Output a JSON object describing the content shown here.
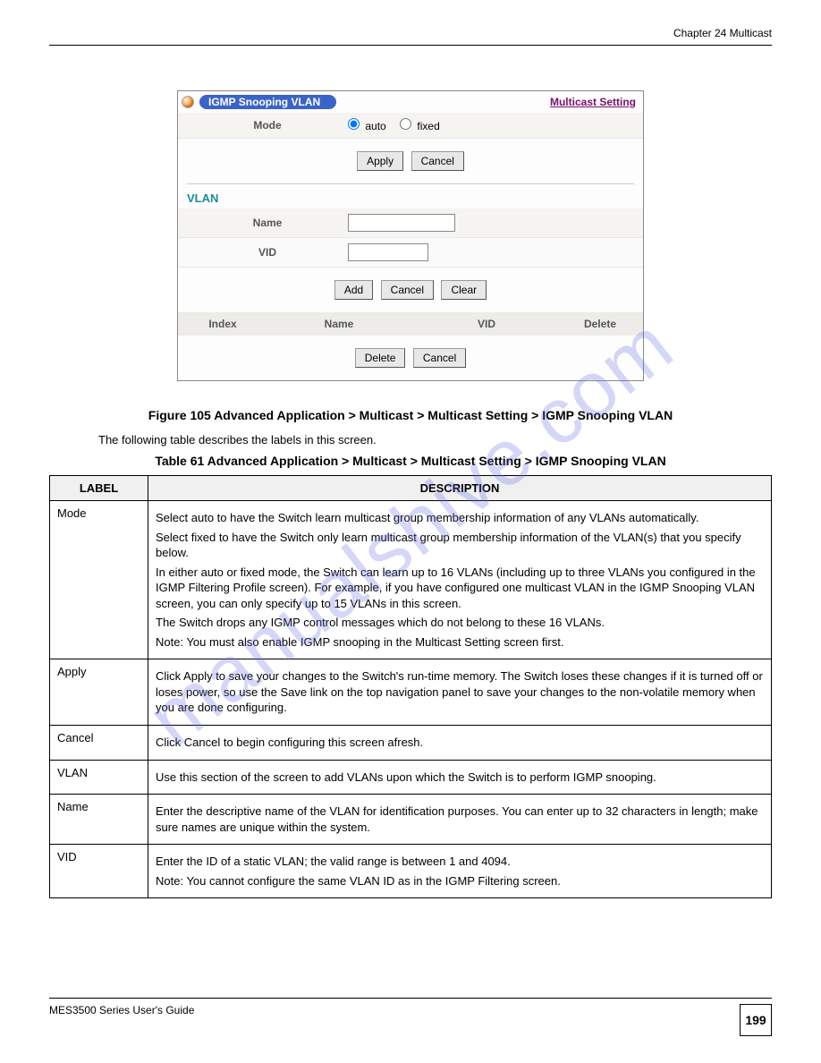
{
  "header": {
    "chapter": "Chapter 24 Multicast",
    "top_divider_color": "#000000"
  },
  "figure": {
    "title": "IGMP Snooping VLAN",
    "link": "Multicast Setting",
    "link_color": "#7a0f6d",
    "header_bg": "#3a63c8",
    "mode": {
      "label": "Mode",
      "options": [
        "auto",
        "fixed"
      ],
      "selected": "auto"
    },
    "buttons_top": {
      "apply": "Apply",
      "cancel": "Cancel"
    },
    "vlan_section": {
      "title": "VLAN",
      "title_color": "#1a8a9a",
      "name_label": "Name",
      "vid_label": "VID",
      "name_value": "",
      "vid_value": ""
    },
    "buttons_mid": {
      "add": "Add",
      "cancel": "Cancel",
      "clear": "Clear"
    },
    "grid_headers": {
      "index": "Index",
      "name": "Name",
      "vid": "VID",
      "delete": "Delete"
    },
    "buttons_bottom": {
      "delete": "Delete",
      "cancel": "Cancel"
    },
    "caption": "Figure 105   Advanced Application > Multicast > Multicast Setting > IGMP Snooping VLAN"
  },
  "table": {
    "intro": "The following table describes the labels in this screen.",
    "caption": "Table 61   Advanced Application > Multicast > Multicast Setting > IGMP Snooping VLAN",
    "headers": {
      "label": "LABEL",
      "description": "DESCRIPTION"
    },
    "header_bg": "#f0f0f0",
    "rows": [
      {
        "label": "Mode",
        "description": [
          "Select auto to have the Switch learn multicast group membership information of any VLANs automatically.",
          "Select fixed to have the Switch only learn multicast group membership information of the VLAN(s) that you specify below.",
          "In either auto or fixed mode, the Switch can learn up to 16 VLANs (including up to three VLANs you configured in the IGMP Filtering Profile screen). For example, if you have configured one multicast VLAN in the IGMP Snooping VLAN screen, you can only specify up to 15 VLANs in this screen.",
          "The Switch drops any IGMP control messages which do not belong to these 16 VLANs.",
          "Note: You must also enable IGMP snooping in the Multicast Setting screen first."
        ]
      },
      {
        "label": "Apply",
        "description": [
          "Click Apply to save your changes to the Switch's run-time memory. The Switch loses these changes if it is turned off or loses power, so use the Save link on the top navigation panel to save your changes to the non-volatile memory when you are done configuring."
        ]
      },
      {
        "label": "Cancel",
        "description": [
          "Click Cancel to begin configuring this screen afresh."
        ]
      },
      {
        "label": "VLAN",
        "description": [
          "Use this section of the screen to add VLANs upon which the Switch is to perform IGMP snooping."
        ]
      },
      {
        "label": "Name",
        "description": [
          "Enter the descriptive name of the VLAN for identification purposes. You can enter up to 32 characters in length; make sure names are unique within the system."
        ]
      },
      {
        "label": "VID",
        "description": [
          "Enter the ID of a static VLAN; the valid range is between 1 and 4094.",
          "Note: You cannot configure the same VLAN ID as in the IGMP Filtering screen."
        ]
      }
    ]
  },
  "footer": {
    "guide": "MES3500 Series User's Guide",
    "page": "199"
  },
  "watermark": {
    "text": "manualshive.com",
    "color": "rgba(100,110,230,0.28)",
    "angle_deg": -38,
    "fontsize": 88
  }
}
